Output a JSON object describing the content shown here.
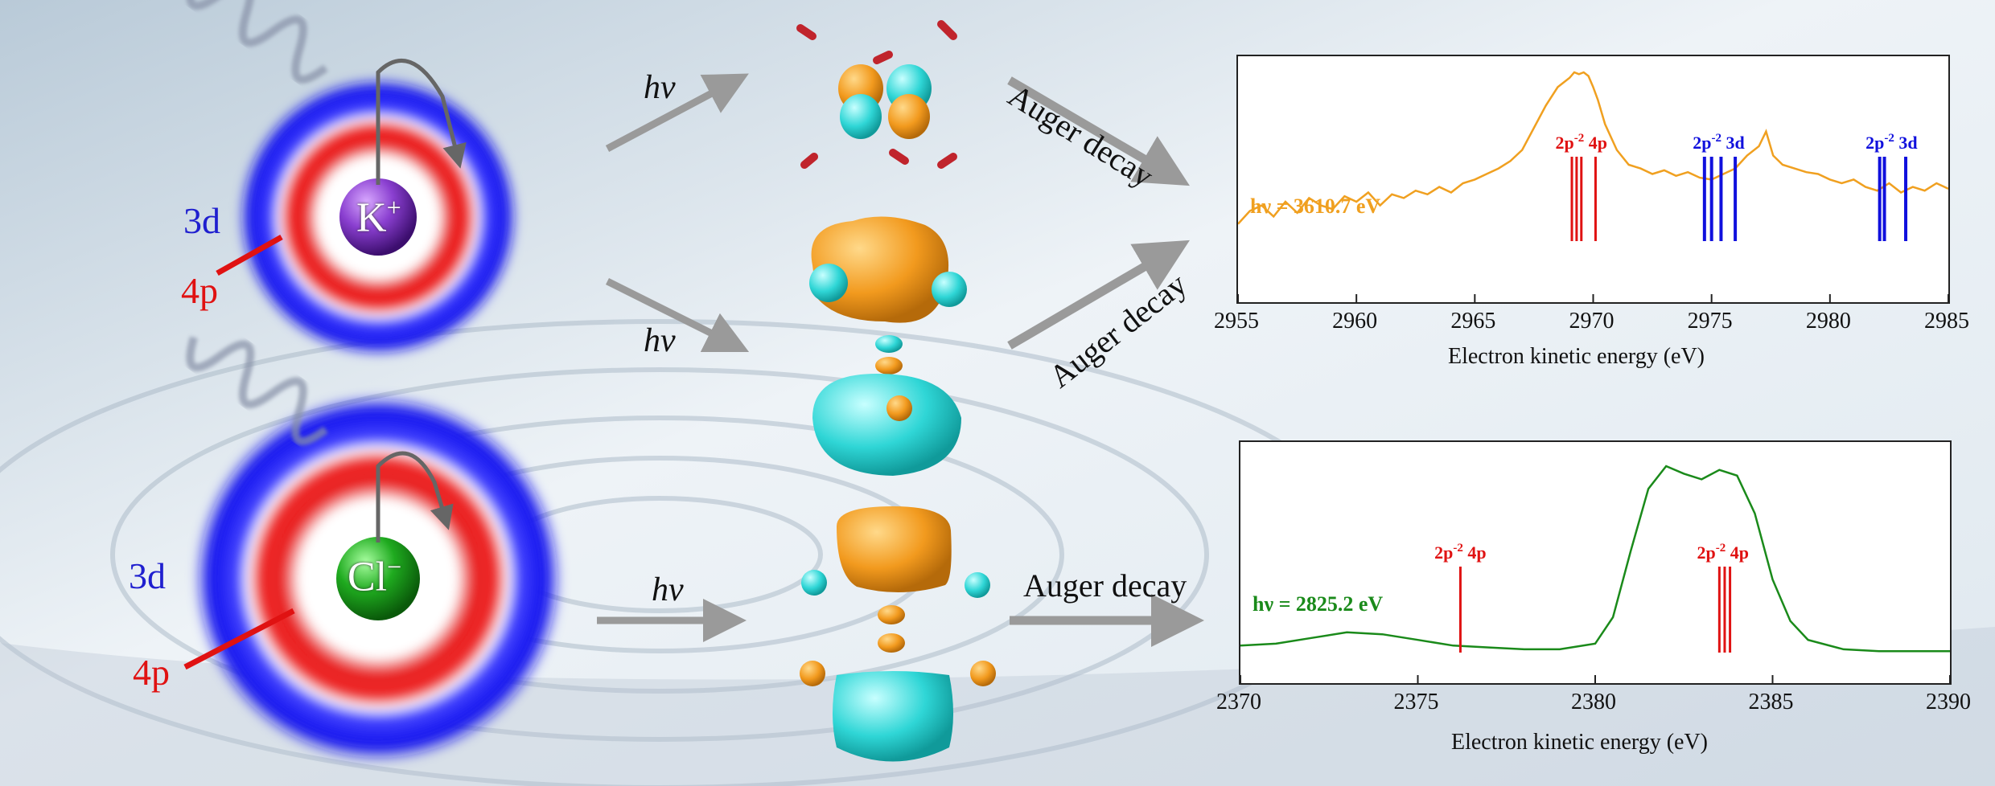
{
  "left": {
    "cation": {
      "symbol": "K",
      "charge": "+",
      "outer_label": "3d",
      "inner_label": "4p"
    },
    "anion": {
      "symbol": "Cl",
      "charge": "−",
      "outer_label": "3d",
      "inner_label": "4p"
    }
  },
  "middle": {
    "photon_label": "hν",
    "auger_label": "Auger decay"
  },
  "colors": {
    "k_spectrum": "#f0a020",
    "cl_spectrum": "#1a8a1a",
    "red_lines": "#e01212",
    "blue_lines": "#1010dd"
  },
  "chart_data": [
    {
      "type": "line",
      "xlabel": "Electron kinetic energy (eV)",
      "xlim": [
        2955,
        2985
      ],
      "xticks": [
        2955,
        2960,
        2965,
        2970,
        2975,
        2980,
        2985
      ],
      "annotation": "hν = 3610.7 eV",
      "series": [
        {
          "x": [
            2955,
            2955.5,
            2956,
            2956.5,
            2957,
            2957.5,
            2958,
            2958.5,
            2959,
            2959.5,
            2960,
            2960.5,
            2961,
            2961.5,
            2962,
            2962.5,
            2963,
            2963.5,
            2964,
            2964.5,
            2965,
            2965.5,
            2966,
            2966.5,
            2967,
            2967.5,
            2968,
            2968.5,
            2969,
            2969.2,
            2969.4,
            2969.6,
            2969.8,
            2970,
            2970.2,
            2970.5,
            2971,
            2971.5,
            2972,
            2972.5,
            2973,
            2973.5,
            2974,
            2974.5,
            2975,
            2975.5,
            2976,
            2976.5,
            2977,
            2977.3,
            2977.6,
            2978,
            2978.5,
            2979,
            2979.5,
            2980,
            2980.5,
            2981,
            2981.5,
            2982,
            2982.5,
            2983,
            2983.5,
            2984,
            2984.5,
            2985
          ],
          "y": [
            0.18,
            0.25,
            0.28,
            0.22,
            0.3,
            0.24,
            0.32,
            0.28,
            0.26,
            0.33,
            0.3,
            0.35,
            0.28,
            0.34,
            0.32,
            0.36,
            0.34,
            0.38,
            0.35,
            0.4,
            0.42,
            0.45,
            0.48,
            0.52,
            0.58,
            0.7,
            0.82,
            0.92,
            0.97,
            1.0,
            0.99,
            1.0,
            0.98,
            0.92,
            0.85,
            0.72,
            0.58,
            0.5,
            0.48,
            0.45,
            0.47,
            0.44,
            0.46,
            0.43,
            0.42,
            0.45,
            0.48,
            0.55,
            0.6,
            0.68,
            0.55,
            0.5,
            0.48,
            0.46,
            0.45,
            0.42,
            0.4,
            0.42,
            0.38,
            0.36,
            0.4,
            0.35,
            0.38,
            0.36,
            0.4,
            0.37
          ]
        }
      ],
      "sticks_red": [
        2969.1,
        2969.3,
        2969.5,
        2970.1
      ],
      "sticks_blue": [
        2974.7,
        2975.0,
        2975.4,
        2976.0,
        2982.1,
        2982.3,
        2983.2
      ],
      "stick_labels": [
        {
          "x": 2969.5,
          "base": "2p",
          "sup": "-2",
          "tail": " 4p",
          "color": "red"
        },
        {
          "x": 2975.3,
          "base": "2p",
          "sup": "-2",
          "tail": " 3d",
          "color": "blue"
        },
        {
          "x": 2982.6,
          "base": "2p",
          "sup": "-2",
          "tail": " 3d",
          "color": "blue"
        }
      ]
    },
    {
      "type": "line",
      "xlabel": "Electron kinetic energy (eV)",
      "xlim": [
        2370,
        2390
      ],
      "xticks": [
        2370,
        2375,
        2380,
        2385,
        2390
      ],
      "annotation": "hν = 2825.2 eV",
      "series": [
        {
          "x": [
            2370,
            2371,
            2372,
            2373,
            2374,
            2375,
            2376,
            2377,
            2378,
            2379,
            2380,
            2380.5,
            2381,
            2381.5,
            2382,
            2382.5,
            2383,
            2383.5,
            2384,
            2384.5,
            2385,
            2385.5,
            2386,
            2387,
            2388,
            2389,
            2390
          ],
          "y": [
            0.05,
            0.06,
            0.09,
            0.12,
            0.11,
            0.08,
            0.05,
            0.04,
            0.03,
            0.03,
            0.06,
            0.2,
            0.55,
            0.88,
            1.0,
            0.96,
            0.93,
            0.98,
            0.95,
            0.75,
            0.4,
            0.18,
            0.08,
            0.03,
            0.02,
            0.02,
            0.02
          ]
        }
      ],
      "sticks_red": [
        2376.2,
        2383.5,
        2383.65,
        2383.8
      ],
      "stick_labels": [
        {
          "x": 2376.2,
          "base": "2p",
          "sup": "-2",
          "tail": " 4p",
          "color": "red"
        },
        {
          "x": 2383.6,
          "base": "2p",
          "sup": "-2",
          "tail": " 4p",
          "color": "red"
        }
      ]
    }
  ]
}
